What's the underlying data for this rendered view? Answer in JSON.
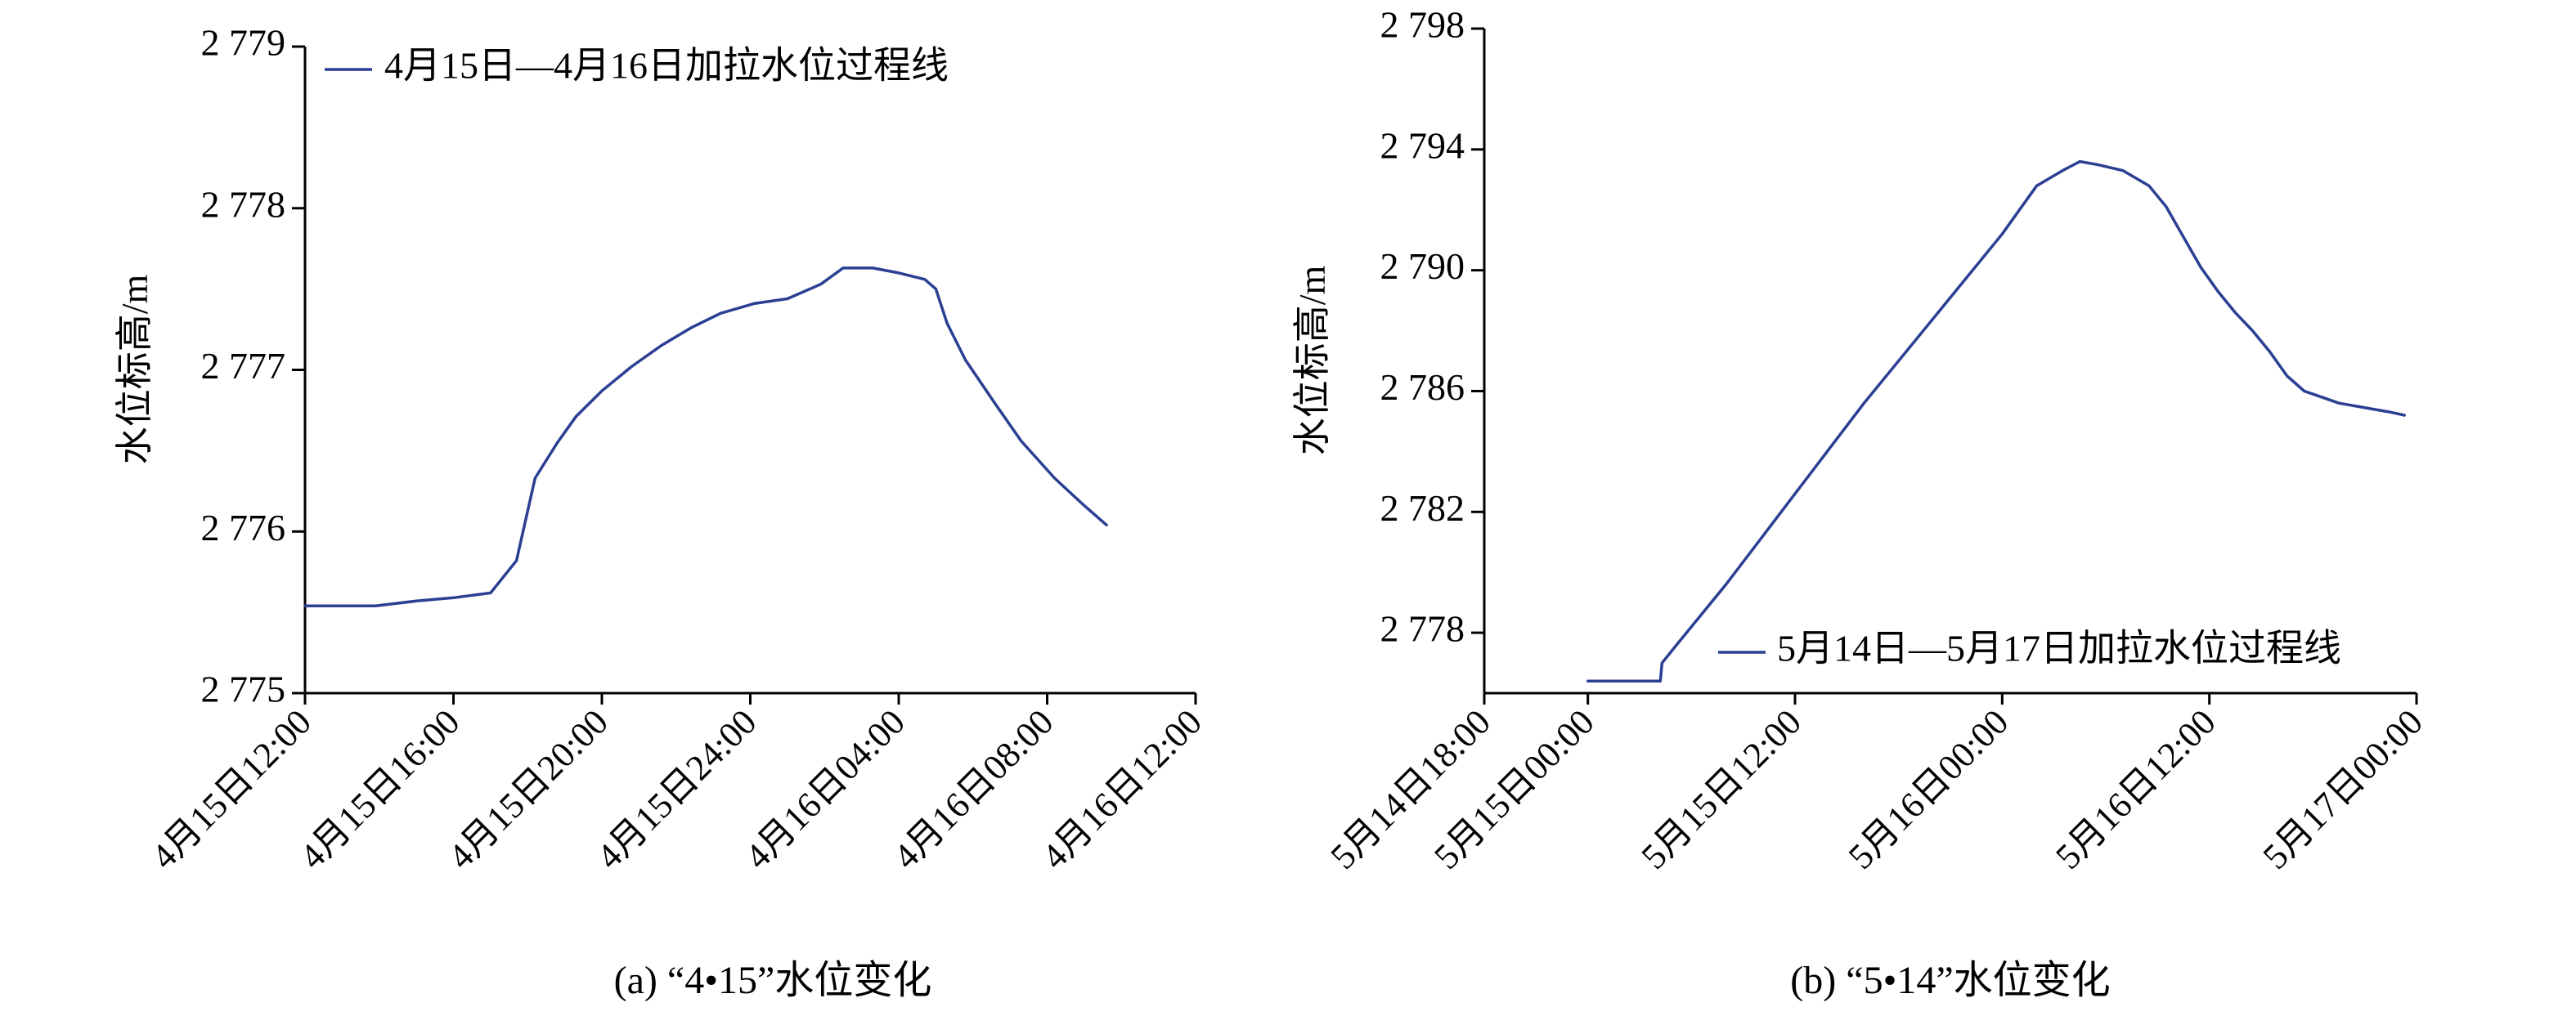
{
  "colors": {
    "series": "#2b3f93",
    "axis": "#000000",
    "background": "#ffffff"
  },
  "chart_data": [
    {
      "type": "line",
      "caption": "(a) “4•15”水位变化",
      "ylabel": "水位标高/m",
      "xlabel": "",
      "ylim": [
        2775,
        2779
      ],
      "xlim_hours": [
        12,
        36
      ],
      "yticks": [
        {
          "value": 2775,
          "label": "2 775"
        },
        {
          "value": 2776,
          "label": "2 776"
        },
        {
          "value": 2777,
          "label": "2 777"
        },
        {
          "value": 2778,
          "label": "2 778"
        },
        {
          "value": 2779,
          "label": "2 779"
        }
      ],
      "xticks": [
        {
          "hours": 12,
          "label": "4月15日12:00"
        },
        {
          "hours": 16,
          "label": "4月15日16:00"
        },
        {
          "hours": 20,
          "label": "4月15日20:00"
        },
        {
          "hours": 24,
          "label": "4月15日24:00"
        },
        {
          "hours": 28,
          "label": "4月16日04:00"
        },
        {
          "hours": 32,
          "label": "4月16日08:00"
        },
        {
          "hours": 36,
          "label": "4月16日12:00"
        }
      ],
      "legend": {
        "position": "top-left",
        "entries": [
          "4月15日—4月16日加拉水位过程线"
        ]
      },
      "grid": false,
      "series": [
        {
          "name": "4月15日—4月16日加拉水位过程线",
          "x": [
            12.0,
            13.9,
            15.0,
            16.0,
            17.0,
            17.7,
            18.2,
            18.8,
            19.3,
            20.0,
            20.8,
            21.6,
            22.4,
            23.2,
            24.1,
            25.0,
            25.9,
            26.5,
            27.3,
            28.0,
            28.7,
            29.0,
            29.3,
            29.8,
            30.6,
            31.3,
            32.2,
            33.0,
            33.6
          ],
          "y": [
            2775.54,
            2775.54,
            2775.57,
            2775.59,
            2775.62,
            2775.82,
            2776.33,
            2776.55,
            2776.71,
            2776.87,
            2777.02,
            2777.15,
            2777.26,
            2777.35,
            2777.41,
            2777.44,
            2777.53,
            2777.63,
            2777.63,
            2777.6,
            2777.56,
            2777.5,
            2777.29,
            2777.06,
            2776.79,
            2776.56,
            2776.33,
            2776.16,
            2776.04
          ]
        }
      ]
    },
    {
      "type": "line",
      "caption": "(b) “5•14”水位变化",
      "ylabel": "水位标高/m",
      "xlabel": "",
      "ylim": [
        2776,
        2798
      ],
      "xlim_hours": [
        18,
        72
      ],
      "yticks": [
        {
          "value": 2778,
          "label": "2 778"
        },
        {
          "value": 2782,
          "label": "2 782"
        },
        {
          "value": 2786,
          "label": "2 786"
        },
        {
          "value": 2790,
          "label": "2 790"
        },
        {
          "value": 2794,
          "label": "2 794"
        },
        {
          "value": 2798,
          "label": "2 798"
        }
      ],
      "xticks": [
        {
          "hours": 18,
          "label": "5月14日18:00"
        },
        {
          "hours": 24,
          "label": "5月15日00:00"
        },
        {
          "hours": 36,
          "label": "5月15日12:00"
        },
        {
          "hours": 48,
          "label": "5月16日00:00"
        },
        {
          "hours": 60,
          "label": "5月16日12:00"
        },
        {
          "hours": 72,
          "label": "5月17日00:00"
        }
      ],
      "legend": {
        "position": "bottom-right",
        "entries": [
          "5月14日—5月17日加拉水位过程线"
        ]
      },
      "grid": false,
      "series": [
        {
          "name": "5月14日—5月17日加拉水位过程线",
          "x": [
            24.0,
            25.6,
            28.2,
            28.3,
            29.0,
            32.0,
            36.0,
            40.0,
            44.0,
            48.0,
            50.0,
            51.5,
            52.5,
            53.5,
            55.0,
            56.5,
            57.5,
            58.5,
            59.5,
            60.5,
            61.5,
            62.5,
            63.5,
            64.5,
            65.5,
            66.5,
            67.5,
            68.5,
            69.5,
            70.5,
            71.3
          ],
          "y": [
            2776.4,
            2776.4,
            2776.4,
            2777.0,
            2777.5,
            2779.6,
            2782.6,
            2785.6,
            2788.4,
            2791.2,
            2792.8,
            2793.3,
            2793.6,
            2793.5,
            2793.3,
            2792.8,
            2792.1,
            2791.1,
            2790.1,
            2789.3,
            2788.6,
            2788.0,
            2787.3,
            2786.5,
            2786.0,
            2785.8,
            2785.6,
            2785.5,
            2785.4,
            2785.3,
            2785.2
          ]
        }
      ]
    }
  ]
}
